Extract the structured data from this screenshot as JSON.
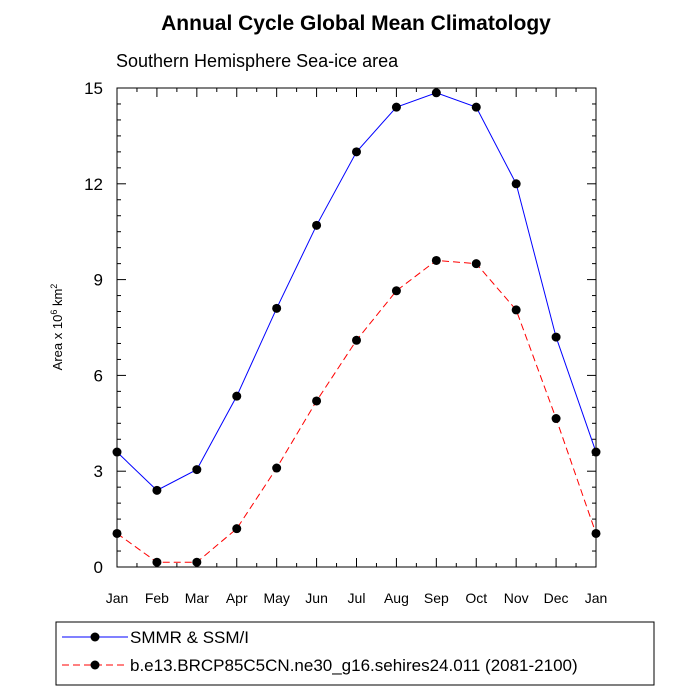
{
  "chart_data": {
    "type": "line",
    "title": "Annual Cycle Global Mean Climatology",
    "subtitle": "Southern Hemisphere Sea-ice area",
    "ylabel": {
      "prefix": "Area x 10",
      "exp1": "6",
      "unit": " km",
      "exp2": "2"
    },
    "categories": [
      "Jan",
      "Feb",
      "Mar",
      "Apr",
      "May",
      "Jun",
      "Jul",
      "Aug",
      "Sep",
      "Oct",
      "Nov",
      "Dec",
      "Jan"
    ],
    "ylim": [
      0,
      15
    ],
    "yticks": [
      0,
      3,
      6,
      9,
      12,
      15
    ],
    "series": [
      {
        "name": "SMMR & SSM/I",
        "color": "#0000ff",
        "dash": "solid",
        "values": [
          3.6,
          2.4,
          3.05,
          5.35,
          8.1,
          10.7,
          13.0,
          14.4,
          14.85,
          14.4,
          12.0,
          7.2,
          3.6
        ]
      },
      {
        "name": "b.e13.BRCP85C5CN.ne30_g16.sehires24.011 (2081-2100)",
        "color": "#ff0000",
        "dash": "dashed",
        "values": [
          1.05,
          0.15,
          0.15,
          1.2,
          3.1,
          5.2,
          7.1,
          8.65,
          9.6,
          9.5,
          8.05,
          4.65,
          1.05
        ]
      }
    ],
    "grid": false,
    "legend_position": "bottom"
  }
}
